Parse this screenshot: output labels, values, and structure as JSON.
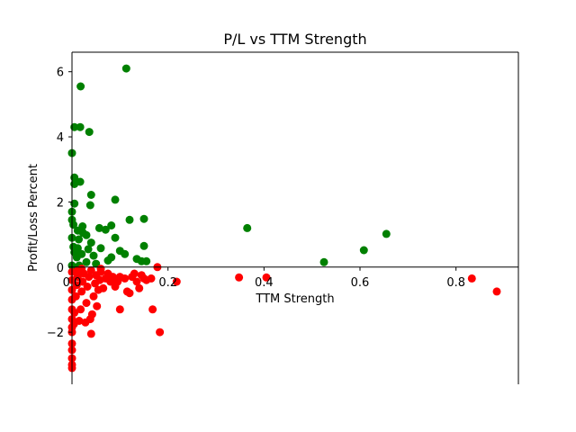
{
  "chart_data": {
    "type": "scatter",
    "title": "P/L vs TTM Strength",
    "xlabel": "TTM Strength",
    "ylabel": "Profit/Loss Percent",
    "xlim": [
      0.0,
      0.93
    ],
    "ylim": [
      -3.6,
      6.6
    ],
    "x_ticks": [
      0.0,
      0.2,
      0.4,
      0.6,
      0.8
    ],
    "x_tick_labels": [
      "0.0",
      "0.2",
      "0.4",
      "0.6",
      "0.8"
    ],
    "y_ticks": [
      -2,
      0,
      2,
      4,
      6
    ],
    "y_tick_labels": [
      "−2",
      "0",
      "2",
      "4",
      "6"
    ],
    "x_axis_position": "at y = 0",
    "y_axis_position": "at x = 0",
    "grid": false,
    "series": [
      {
        "color": "#008000",
        "points": [
          [
            0.113,
            6.1
          ],
          [
            0.018,
            5.55
          ],
          [
            0.005,
            4.3
          ],
          [
            0.017,
            4.3
          ],
          [
            0.036,
            4.15
          ],
          [
            0.0,
            3.5
          ],
          [
            0.005,
            2.75
          ],
          [
            0.005,
            2.55
          ],
          [
            0.017,
            2.62
          ],
          [
            0.04,
            2.22
          ],
          [
            0.09,
            2.07
          ],
          [
            0.005,
            1.95
          ],
          [
            0.038,
            1.9
          ],
          [
            0.0,
            1.7
          ],
          [
            0.0,
            1.45
          ],
          [
            0.003,
            1.3
          ],
          [
            0.022,
            1.25
          ],
          [
            0.012,
            1.12
          ],
          [
            0.023,
            1.05
          ],
          [
            0.03,
            0.98
          ],
          [
            0.057,
            1.2
          ],
          [
            0.07,
            1.15
          ],
          [
            0.082,
            1.28
          ],
          [
            0.12,
            1.45
          ],
          [
            0.15,
            1.48
          ],
          [
            0.0,
            0.9
          ],
          [
            0.014,
            0.85
          ],
          [
            0.04,
            0.75
          ],
          [
            0.09,
            0.9
          ],
          [
            0.15,
            0.65
          ],
          [
            0.003,
            0.62
          ],
          [
            0.012,
            0.58
          ],
          [
            0.034,
            0.55
          ],
          [
            0.06,
            0.58
          ],
          [
            0.1,
            0.5
          ],
          [
            0.005,
            0.45
          ],
          [
            0.02,
            0.4
          ],
          [
            0.045,
            0.35
          ],
          [
            0.11,
            0.4
          ],
          [
            0.075,
            0.2
          ],
          [
            0.082,
            0.3
          ],
          [
            0.135,
            0.25
          ],
          [
            0.145,
            0.18
          ],
          [
            0.155,
            0.18
          ],
          [
            0.05,
            0.1
          ],
          [
            0.01,
            0.3
          ],
          [
            0.03,
            0.15
          ],
          [
            0.0,
            0.05
          ],
          [
            0.015,
            0.05
          ],
          [
            0.365,
            1.2
          ],
          [
            0.525,
            0.15
          ],
          [
            0.608,
            0.52
          ],
          [
            0.655,
            1.02
          ]
        ]
      },
      {
        "color": "#ff0000",
        "points": [
          [
            0.0,
            -3.1
          ],
          [
            0.0,
            -3.0
          ],
          [
            0.0,
            -2.8
          ],
          [
            0.0,
            -2.55
          ],
          [
            0.0,
            -2.35
          ],
          [
            0.0,
            -2.0
          ],
          [
            0.0,
            -1.85
          ],
          [
            0.0,
            -1.6
          ],
          [
            0.0,
            -1.3
          ],
          [
            0.0,
            -1.0
          ],
          [
            0.0,
            -0.7
          ],
          [
            0.0,
            -0.4
          ],
          [
            0.0,
            -0.15
          ],
          [
            0.004,
            -1.75
          ],
          [
            0.005,
            -1.4
          ],
          [
            0.008,
            -0.9
          ],
          [
            0.01,
            -0.55
          ],
          [
            0.012,
            -0.3
          ],
          [
            0.015,
            -1.65
          ],
          [
            0.018,
            -1.3
          ],
          [
            0.02,
            -0.75
          ],
          [
            0.022,
            -0.45
          ],
          [
            0.025,
            -0.2
          ],
          [
            0.028,
            -1.7
          ],
          [
            0.03,
            -1.1
          ],
          [
            0.032,
            -0.6
          ],
          [
            0.035,
            -0.3
          ],
          [
            0.038,
            -1.6
          ],
          [
            0.04,
            -2.05
          ],
          [
            0.042,
            -1.45
          ],
          [
            0.045,
            -0.9
          ],
          [
            0.048,
            -0.5
          ],
          [
            0.05,
            -0.25
          ],
          [
            0.052,
            -1.2
          ],
          [
            0.055,
            -0.7
          ],
          [
            0.058,
            -0.4
          ],
          [
            0.06,
            -0.15
          ],
          [
            0.065,
            -0.65
          ],
          [
            0.07,
            -0.35
          ],
          [
            0.075,
            -0.2
          ],
          [
            0.08,
            -0.45
          ],
          [
            0.085,
            -0.3
          ],
          [
            0.09,
            -0.6
          ],
          [
            0.095,
            -0.45
          ],
          [
            0.1,
            -0.3
          ],
          [
            0.1,
            -1.3
          ],
          [
            0.11,
            -0.35
          ],
          [
            0.115,
            -0.75
          ],
          [
            0.12,
            -0.8
          ],
          [
            0.125,
            -0.3
          ],
          [
            0.13,
            -0.2
          ],
          [
            0.135,
            -0.45
          ],
          [
            0.14,
            -0.65
          ],
          [
            0.145,
            -0.25
          ],
          [
            0.15,
            -0.35
          ],
          [
            0.155,
            -0.4
          ],
          [
            0.165,
            -0.35
          ],
          [
            0.168,
            -1.3
          ],
          [
            0.178,
            0.0
          ],
          [
            0.183,
            -2.0
          ],
          [
            0.218,
            -0.45
          ],
          [
            0.348,
            -0.32
          ],
          [
            0.405,
            -0.32
          ],
          [
            0.833,
            -0.35
          ],
          [
            0.885,
            -0.75
          ],
          [
            0.02,
            -0.05
          ],
          [
            0.04,
            -0.1
          ],
          [
            0.06,
            -0.05
          ],
          [
            0.012,
            -0.1
          ]
        ]
      }
    ]
  }
}
